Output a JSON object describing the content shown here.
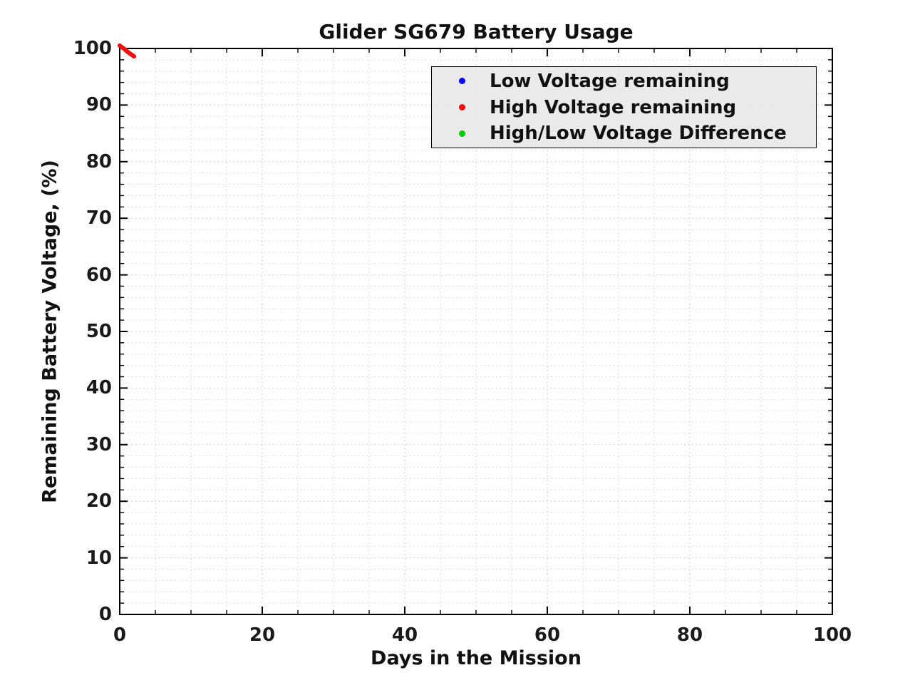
{
  "chart_data": {
    "type": "scatter",
    "title": "Glider SG679 Battery Usage",
    "xlabel": "Days in the Mission",
    "ylabel": "Remaining Battery Voltage, (%)",
    "xlim": [
      0,
      100
    ],
    "ylim": [
      0,
      100
    ],
    "x_major_ticks": [
      0,
      20,
      40,
      60,
      80,
      100
    ],
    "x_tick_labels": [
      "0",
      "20",
      "40",
      "60",
      "80",
      "100"
    ],
    "x_minor_step": 5,
    "y_major_ticks": [
      0,
      10,
      20,
      30,
      40,
      50,
      60,
      70,
      80,
      90,
      100
    ],
    "y_tick_labels": [
      "0",
      "10",
      "20",
      "30",
      "40",
      "50",
      "60",
      "70",
      "80",
      "90",
      "100"
    ],
    "y_minor_step": 2,
    "grid": true,
    "grid_minor": true,
    "grid_color": "#c2c2c2",
    "grid_minor_color": "#d2d2d2",
    "axis_color": "#000000",
    "legend": {
      "position": "top-right",
      "entries": [
        {
          "label": "Low Voltage remaining",
          "color": "#0000ff",
          "marker": "dot"
        },
        {
          "label": "High Voltage remaining",
          "color": "#ee1111",
          "marker": "dot"
        },
        {
          "label": "High/Low Voltage Difference",
          "color": "#00cc00",
          "marker": "dot"
        }
      ]
    },
    "series": [
      {
        "name": "Low Voltage remaining",
        "color": "#0000ff",
        "marker": "dot",
        "x": [],
        "y": []
      },
      {
        "name": "High Voltage remaining",
        "color": "#ee1111",
        "marker": "dot",
        "x": [
          0,
          0.33,
          0.67,
          1.0,
          1.33,
          1.67,
          2.0
        ],
        "y": [
          100.5,
          100.2,
          99.9,
          99.5,
          99.2,
          98.9,
          98.6
        ]
      },
      {
        "name": "High/Low Voltage Difference",
        "color": "#00cc00",
        "marker": "dot",
        "x": [],
        "y": []
      }
    ]
  }
}
